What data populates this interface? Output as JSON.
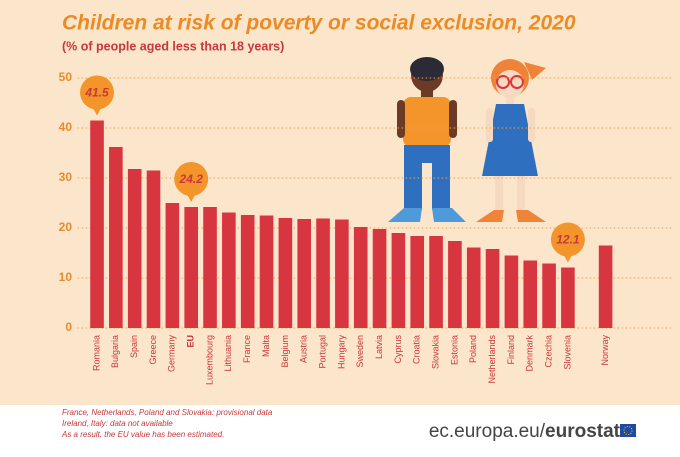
{
  "chart_data": {
    "type": "bar",
    "title": "Children at risk of poverty or social exclusion, 2020",
    "subtitle": "(% of people aged less than 18 years)",
    "categories": [
      "Romania",
      "Bulgaria",
      "Spain",
      "Greece",
      "Germany",
      "EU",
      "Luxembourg",
      "Lithuania",
      "France",
      "Malta",
      "Belgium",
      "Austria",
      "Portugal",
      "Hungary",
      "Sweden",
      "Latvia",
      "Cyprus",
      "Croatia",
      "Slovakia",
      "Estonia",
      "Poland",
      "Netherlands",
      "Finland",
      "Denmark",
      "Czechia",
      "Slovenia",
      null,
      "Norway"
    ],
    "values": [
      41.5,
      36.2,
      31.8,
      31.5,
      25.0,
      24.2,
      24.2,
      23.1,
      22.6,
      22.5,
      22.0,
      21.8,
      21.9,
      21.7,
      20.2,
      19.8,
      19.0,
      18.4,
      18.4,
      17.4,
      16.1,
      15.8,
      14.5,
      13.5,
      12.9,
      12.1,
      null,
      16.5
    ],
    "value_labels": [
      "41.5",
      null,
      null,
      null,
      null,
      "24.2",
      null,
      null,
      null,
      null,
      null,
      null,
      null,
      null,
      null,
      null,
      null,
      null,
      null,
      null,
      null,
      null,
      null,
      null,
      null,
      "12.1",
      null,
      null
    ],
    "color": "#d7353f",
    "ylim": [
      0,
      50
    ],
    "yticks": [
      0,
      10,
      20,
      30,
      40,
      50
    ],
    "grid": true,
    "footnotes": [
      "France, Netherlands, Poland and Slovakia: provisional data",
      "Ireland, Italy: data not available",
      "As a result, the EU value has been estimated."
    ],
    "source": {
      "site": "ec.europa.eu/",
      "brand": "eurostat"
    }
  }
}
